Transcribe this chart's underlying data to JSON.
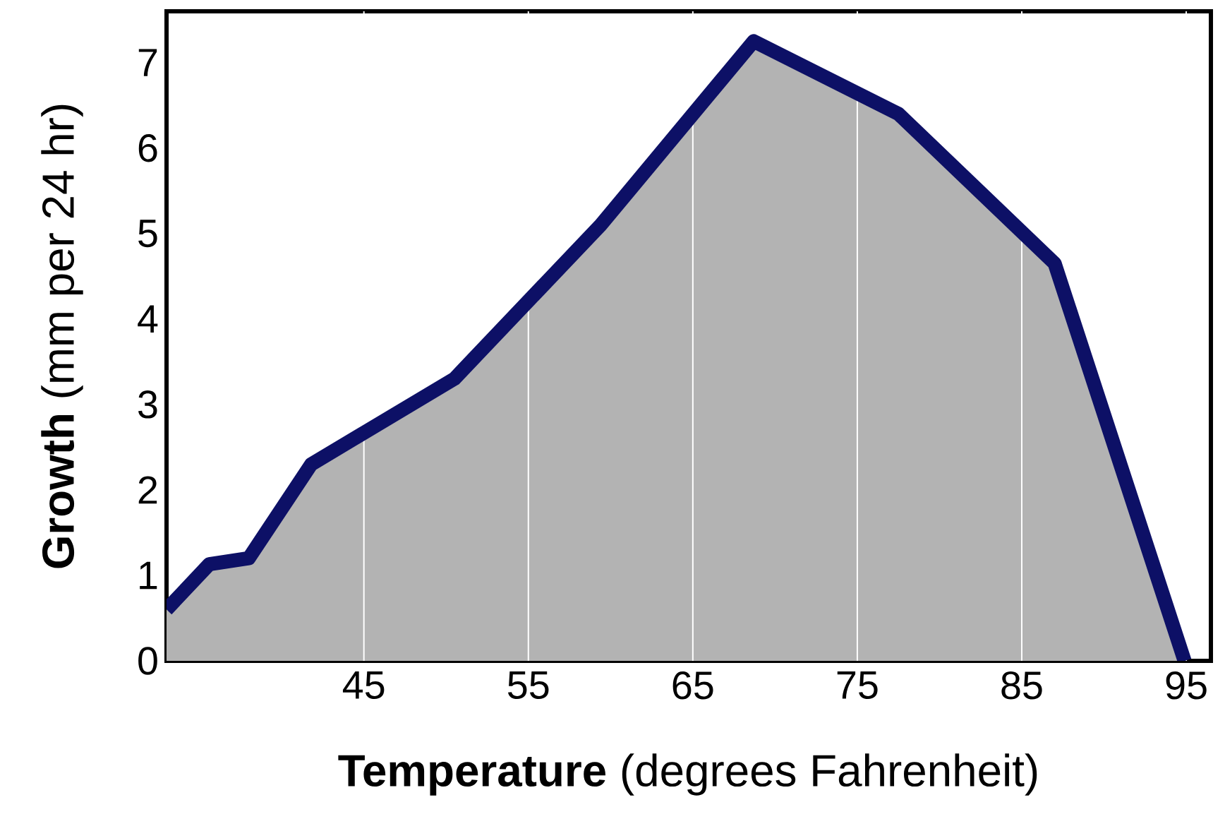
{
  "chart_data": {
    "type": "area",
    "xlabel": "**Temperature** (degrees Fahrenheit)",
    "ylabel": "**Growth** (mm per 24 hr)",
    "x": [
      33,
      35.6,
      38.0,
      41.8,
      50.5,
      59.4,
      68.7,
      77.5,
      87.0,
      94.9
    ],
    "series": [
      {
        "color": "#0d1066",
        "values": [
          0.6,
          1.13,
          1.2,
          2.3,
          3.3,
          5.1,
          7.25,
          6.4,
          4.65,
          0
        ]
      }
    ],
    "xlim": [
      33,
      96.5
    ],
    "ylim": [
      0,
      7.6
    ],
    "xticks": [
      45,
      55,
      65,
      75,
      85,
      95
    ],
    "yticks": [
      0,
      1,
      2,
      3,
      4,
      5,
      6,
      7
    ],
    "grid": "x",
    "marker": "none",
    "line_style": "solid"
  }
}
